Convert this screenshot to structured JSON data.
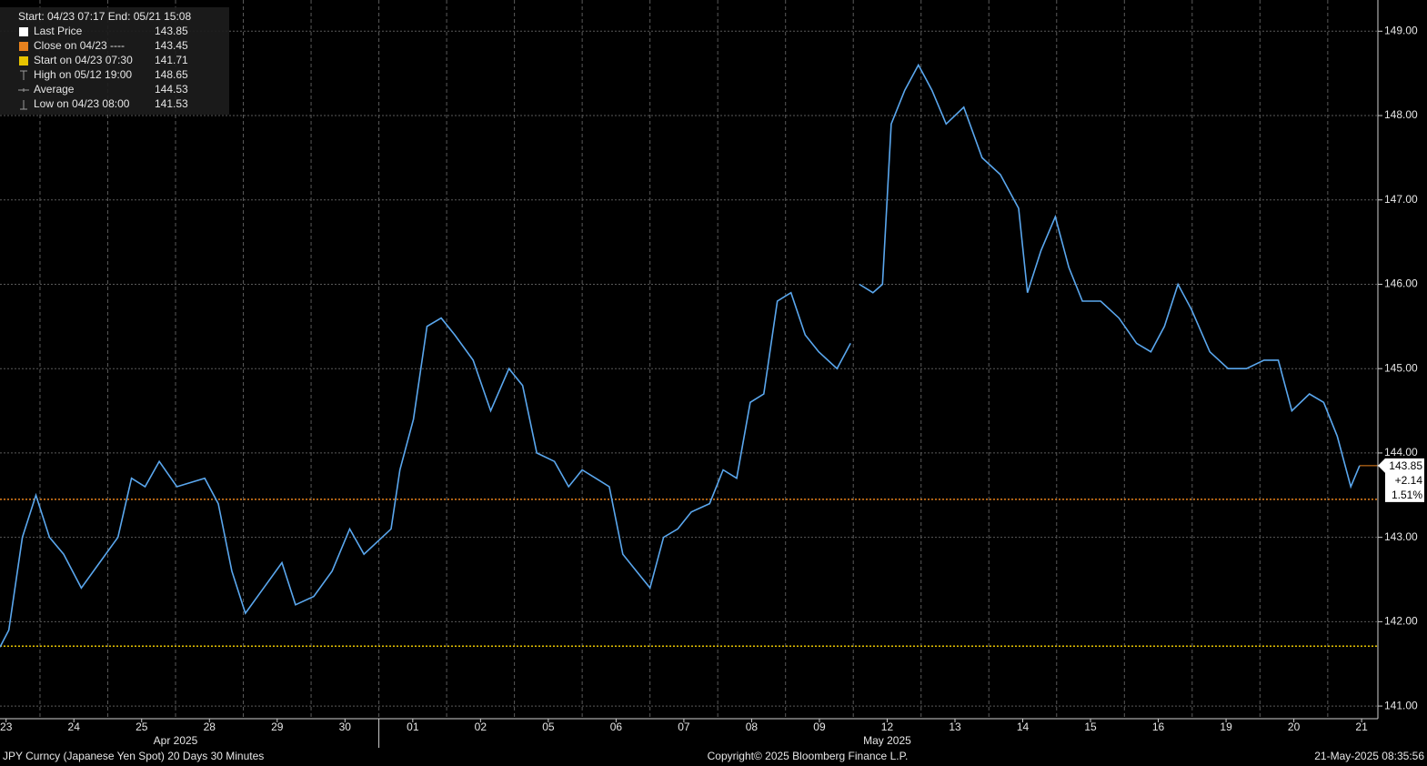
{
  "chart_data": {
    "type": "line",
    "header": "Start: 04/23 07:17 End: 05/21 15:08",
    "legend": [
      {
        "name": "Last Price",
        "value": 143.85,
        "color": "#ffffff",
        "icon": "box"
      },
      {
        "name": "Close on 04/23 ----",
        "value": 143.45,
        "color": "#e8821e",
        "icon": "box",
        "ref_line": true
      },
      {
        "name": "Start on 04/23 07:30",
        "value": 141.71,
        "color": "#e6c300",
        "icon": "box",
        "ref_line": true
      },
      {
        "name": "High on 05/12 19:00",
        "value": 148.65,
        "color": "#9a9a9a",
        "icon": "high"
      },
      {
        "name": "Average",
        "value": 144.53,
        "color": "#9a9a9a",
        "icon": "avg"
      },
      {
        "name": "Low on 04/23 08:00",
        "value": 141.53,
        "color": "#9a9a9a",
        "icon": "low"
      }
    ],
    "series": [
      {
        "name": "JPY Curncy",
        "color": "#5aa7ee",
        "x": [
          -0.09,
          0.04,
          0.24,
          0.44,
          0.64,
          0.85,
          1.11,
          1.38,
          1.65,
          1.85,
          2.05,
          2.26,
          2.52,
          2.93,
          3.13,
          3.33,
          3.53,
          3.8,
          4.07,
          4.27,
          4.54,
          4.81,
          5.07,
          5.28,
          5.68,
          5.81,
          6.01,
          6.21,
          6.42,
          6.62,
          6.89,
          7.15,
          7.42,
          7.62,
          7.83,
          8.09,
          8.3,
          8.5,
          8.7,
          8.9,
          9.1,
          9.3,
          9.5,
          9.7,
          9.91,
          10.11,
          10.38,
          10.58,
          10.78,
          10.98,
          11.18,
          11.38,
          11.58,
          11.79,
          11.99,
          12.26,
          12.46,
          12.52,
          12.59,
          12.79,
          12.93,
          13.06,
          13.26,
          13.46,
          13.66,
          13.87,
          14.13,
          14.4,
          14.67,
          14.94,
          15.07,
          15.27,
          15.48,
          15.68,
          15.88,
          16.15,
          16.42,
          16.68,
          16.89,
          17.09,
          17.29,
          17.49,
          17.76,
          18.03,
          18.3,
          18.56,
          18.77,
          18.97,
          19.23,
          19.44,
          19.64,
          19.84,
          19.97
        ],
        "values": [
          141.7,
          141.9,
          143.0,
          143.5,
          143.0,
          142.8,
          142.4,
          142.7,
          143.0,
          143.7,
          143.6,
          143.9,
          143.6,
          143.7,
          143.4,
          142.6,
          142.1,
          142.4,
          142.7,
          142.2,
          142.3,
          142.6,
          143.1,
          142.8,
          143.1,
          143.8,
          144.4,
          145.5,
          145.6,
          145.4,
          145.1,
          144.5,
          145.0,
          144.8,
          144.0,
          143.9,
          143.6,
          143.8,
          143.7,
          143.6,
          142.8,
          142.6,
          142.4,
          143.0,
          143.1,
          143.3,
          143.4,
          143.8,
          143.7,
          144.6,
          144.7,
          145.8,
          145.9,
          145.4,
          145.2,
          145.0,
          145.3,
          null,
          146.0,
          145.9,
          146.0,
          147.9,
          148.3,
          148.6,
          148.3,
          147.9,
          148.1,
          147.5,
          147.3,
          146.9,
          145.9,
          146.4,
          146.8,
          146.2,
          145.8,
          145.8,
          145.6,
          145.3,
          145.2,
          145.5,
          146.0,
          145.7,
          145.2,
          145.0,
          145.0,
          145.1,
          145.1,
          144.5,
          144.7,
          144.6,
          144.2,
          143.6,
          143.85
        ]
      }
    ],
    "xlim": [
      -0.09,
      20.24
    ],
    "xticks": [
      {
        "value": 0,
        "label": "23"
      },
      {
        "value": 1,
        "label": "24"
      },
      {
        "value": 2,
        "label": "25"
      },
      {
        "value": 3,
        "label": "28"
      },
      {
        "value": 4,
        "label": "29"
      },
      {
        "value": 5,
        "label": "30"
      },
      {
        "value": 6,
        "label": "01"
      },
      {
        "value": 7,
        "label": "02"
      },
      {
        "value": 8,
        "label": "05"
      },
      {
        "value": 9,
        "label": "06"
      },
      {
        "value": 10,
        "label": "07"
      },
      {
        "value": 11,
        "label": "08"
      },
      {
        "value": 12,
        "label": "09"
      },
      {
        "value": 13,
        "label": "12"
      },
      {
        "value": 14,
        "label": "13"
      },
      {
        "value": 15,
        "label": "14"
      },
      {
        "value": 16,
        "label": "15"
      },
      {
        "value": 17,
        "label": "16"
      },
      {
        "value": 18,
        "label": "19"
      },
      {
        "value": 19,
        "label": "20"
      },
      {
        "value": 20,
        "label": "21"
      }
    ],
    "months": [
      {
        "value": 2.5,
        "label": "Apr 2025"
      },
      {
        "value": 13,
        "label": "May 2025"
      }
    ],
    "ylim": [
      140.85,
      149.37
    ],
    "yticks": [
      {
        "value": 141,
        "label": "141.00"
      },
      {
        "value": 142,
        "label": "142.00"
      },
      {
        "value": 143,
        "label": "143.00"
      },
      {
        "value": 144,
        "label": "144.00"
      },
      {
        "value": 145,
        "label": "145.00"
      },
      {
        "value": 146,
        "label": "146.00"
      },
      {
        "value": 147,
        "label": "147.00"
      },
      {
        "value": 148,
        "label": "148.00"
      },
      {
        "value": 149,
        "label": "149.00"
      }
    ],
    "price_tag": [
      "143.85",
      "+2.14",
      "1.51%"
    ],
    "grid": true,
    "footer_left": "JPY Curncy (Japanese Yen Spot) 20 Days 30 Minutes",
    "footer_center": "Copyright© 2025 Bloomberg Finance L.P.",
    "footer_right": "21-May-2025 08:35:56"
  }
}
